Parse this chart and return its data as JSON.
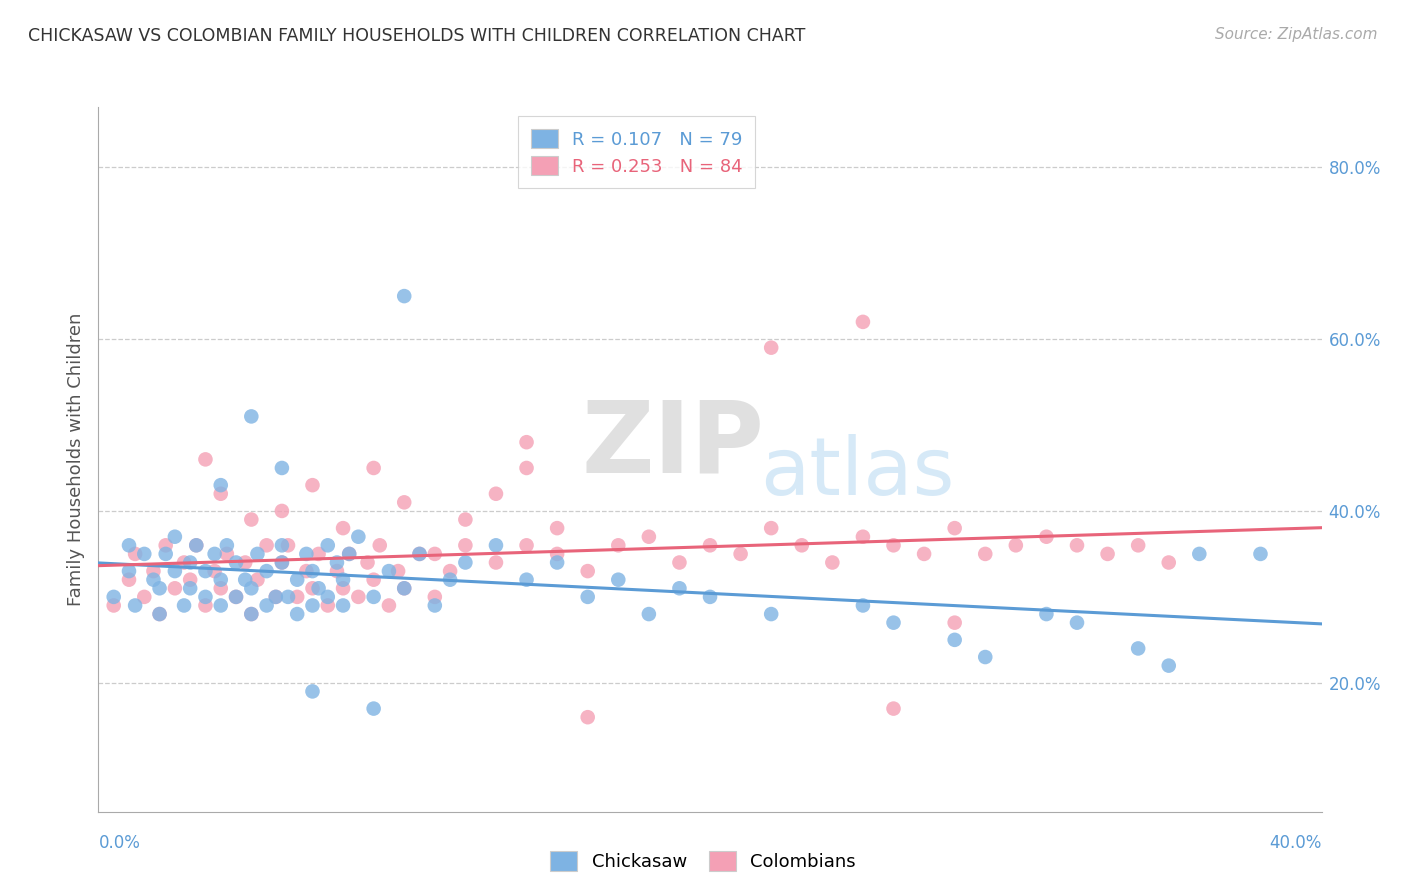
{
  "title": "CHICKASAW VS COLOMBIAN FAMILY HOUSEHOLDS WITH CHILDREN CORRELATION CHART",
  "source": "Source: ZipAtlas.com",
  "ylabel": "Family Households with Children",
  "xlim": [
    0.0,
    0.4
  ],
  "ylim": [
    0.05,
    0.87
  ],
  "yticks": [
    0.2,
    0.4,
    0.6,
    0.8
  ],
  "ytick_labels": [
    "20.0%",
    "40.0%",
    "60.0%",
    "80.0%"
  ],
  "chickasaw_color": "#7eb3e3",
  "colombian_color": "#f4a0b5",
  "line_color_chickasaw": "#5b9bd5",
  "line_color_colombian": "#e8647a",
  "chickasaw_x": [
    0.005,
    0.01,
    0.01,
    0.012,
    0.015,
    0.018,
    0.02,
    0.02,
    0.022,
    0.025,
    0.025,
    0.028,
    0.03,
    0.03,
    0.032,
    0.035,
    0.035,
    0.038,
    0.04,
    0.04,
    0.042,
    0.045,
    0.045,
    0.048,
    0.05,
    0.05,
    0.052,
    0.055,
    0.055,
    0.058,
    0.06,
    0.06,
    0.062,
    0.065,
    0.065,
    0.068,
    0.07,
    0.07,
    0.072,
    0.075,
    0.075,
    0.078,
    0.08,
    0.08,
    0.082,
    0.085,
    0.09,
    0.095,
    0.1,
    0.105,
    0.11,
    0.115,
    0.12,
    0.13,
    0.14,
    0.15,
    0.16,
    0.17,
    0.18,
    0.19,
    0.2,
    0.22,
    0.25,
    0.26,
    0.28,
    0.29,
    0.31,
    0.32,
    0.34,
    0.35,
    0.36,
    0.38,
    0.04,
    0.05,
    0.06,
    0.07,
    0.09,
    0.1
  ],
  "chickasaw_y": [
    0.3,
    0.33,
    0.36,
    0.29,
    0.35,
    0.32,
    0.28,
    0.31,
    0.35,
    0.33,
    0.37,
    0.29,
    0.31,
    0.34,
    0.36,
    0.3,
    0.33,
    0.35,
    0.29,
    0.32,
    0.36,
    0.3,
    0.34,
    0.32,
    0.28,
    0.31,
    0.35,
    0.29,
    0.33,
    0.3,
    0.34,
    0.36,
    0.3,
    0.28,
    0.32,
    0.35,
    0.29,
    0.33,
    0.31,
    0.36,
    0.3,
    0.34,
    0.29,
    0.32,
    0.35,
    0.37,
    0.3,
    0.33,
    0.31,
    0.35,
    0.29,
    0.32,
    0.34,
    0.36,
    0.32,
    0.34,
    0.3,
    0.32,
    0.28,
    0.31,
    0.3,
    0.28,
    0.29,
    0.27,
    0.25,
    0.23,
    0.28,
    0.27,
    0.24,
    0.22,
    0.35,
    0.35,
    0.43,
    0.51,
    0.45,
    0.19,
    0.17,
    0.65
  ],
  "colombian_x": [
    0.005,
    0.01,
    0.012,
    0.015,
    0.018,
    0.02,
    0.022,
    0.025,
    0.028,
    0.03,
    0.032,
    0.035,
    0.038,
    0.04,
    0.042,
    0.045,
    0.048,
    0.05,
    0.052,
    0.055,
    0.058,
    0.06,
    0.062,
    0.065,
    0.068,
    0.07,
    0.072,
    0.075,
    0.078,
    0.08,
    0.082,
    0.085,
    0.088,
    0.09,
    0.092,
    0.095,
    0.098,
    0.1,
    0.105,
    0.11,
    0.115,
    0.12,
    0.13,
    0.14,
    0.15,
    0.16,
    0.17,
    0.18,
    0.19,
    0.2,
    0.21,
    0.22,
    0.23,
    0.24,
    0.25,
    0.26,
    0.27,
    0.28,
    0.29,
    0.3,
    0.31,
    0.32,
    0.33,
    0.34,
    0.35,
    0.035,
    0.04,
    0.05,
    0.06,
    0.07,
    0.08,
    0.09,
    0.1,
    0.11,
    0.12,
    0.13,
    0.14,
    0.15,
    0.22,
    0.25,
    0.26,
    0.28,
    0.14,
    0.16
  ],
  "colombian_y": [
    0.29,
    0.32,
    0.35,
    0.3,
    0.33,
    0.28,
    0.36,
    0.31,
    0.34,
    0.32,
    0.36,
    0.29,
    0.33,
    0.31,
    0.35,
    0.3,
    0.34,
    0.28,
    0.32,
    0.36,
    0.3,
    0.34,
    0.36,
    0.3,
    0.33,
    0.31,
    0.35,
    0.29,
    0.33,
    0.31,
    0.35,
    0.3,
    0.34,
    0.32,
    0.36,
    0.29,
    0.33,
    0.31,
    0.35,
    0.3,
    0.33,
    0.36,
    0.34,
    0.36,
    0.35,
    0.33,
    0.36,
    0.37,
    0.34,
    0.36,
    0.35,
    0.38,
    0.36,
    0.34,
    0.37,
    0.36,
    0.35,
    0.38,
    0.35,
    0.36,
    0.37,
    0.36,
    0.35,
    0.36,
    0.34,
    0.46,
    0.42,
    0.39,
    0.4,
    0.43,
    0.38,
    0.45,
    0.41,
    0.35,
    0.39,
    0.42,
    0.45,
    0.38,
    0.59,
    0.62,
    0.17,
    0.27,
    0.48,
    0.16
  ]
}
